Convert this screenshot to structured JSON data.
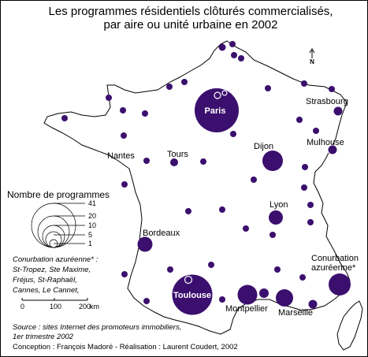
{
  "title_line1": "Les programmes résidentiels clôturés commercialisés,",
  "title_line2": "par aire ou unité urbaine en 2002",
  "north_label": "N",
  "colors": {
    "circle_fill": "#3b0f6e",
    "outline": "#000000",
    "background": "#ffffff"
  },
  "cities": {
    "paris": "Paris",
    "toulouse": "Toulouse",
    "strasbourg": "Strasbourg",
    "mulhouse": "Mulhouse",
    "dijon": "Dijon",
    "nantes": "Nantes",
    "tours": "Tours",
    "lyon": "Lyon",
    "bordeaux": "Bordeaux",
    "montpellier": "Montpellier",
    "marseille": "Marseille",
    "conurbation_line1": "Conurbation",
    "conurbation_line2": "azuréenne*"
  },
  "legend": {
    "title": "Nombre de programmes",
    "values": [
      "41",
      "20",
      "10",
      "5",
      "1"
    ]
  },
  "note": {
    "line1": "Conurbation azuréenne* :",
    "line2": "St-Tropez, Ste Maxime,",
    "line3": "Fréjus, St-Raphaël,",
    "line4": "Cannes, Le Cannet,"
  },
  "scale": {
    "v0": "0",
    "v1": "100",
    "v2": "200",
    "unit": "km"
  },
  "source": {
    "line1": "Source : sites Internet des promoteurs immobiliers,",
    "line2": "1er trimestre 2002"
  },
  "credit": "Conception : François Madoré  - Réalisation : Laurent Coudert, 2002"
}
